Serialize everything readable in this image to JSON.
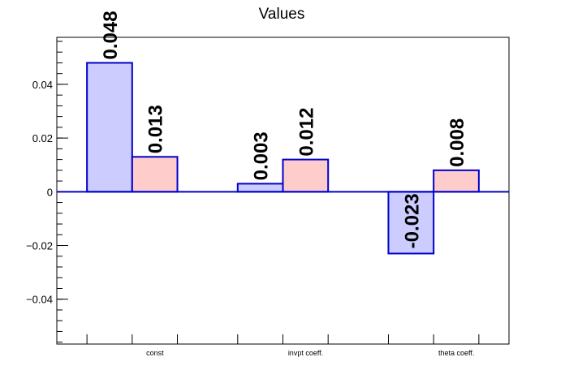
{
  "chart_data": {
    "type": "bar",
    "title": "Values",
    "xlabel": "",
    "ylabel": "",
    "categories": [
      "const",
      "invpt coeff.",
      "theta coeff."
    ],
    "series": [
      {
        "values": [
          0.048,
          0.003,
          -0.023
        ],
        "labels": [
          "0.048",
          "0.003",
          "-0.023"
        ],
        "color": "#ccccff"
      },
      {
        "values": [
          0.013,
          0.012,
          0.008
        ],
        "labels": [
          "0.013",
          "0.012",
          "0.008"
        ],
        "color": "#ffcccc"
      }
    ],
    "ylim": [
      -0.0567,
      0.0575
    ],
    "yticks": [
      -0.04,
      -0.02,
      0,
      0.02,
      0.04
    ],
    "ytick_labels": [
      "−0.04",
      "−0.02",
      "0",
      "0.02",
      "0.04"
    ],
    "bar_edge_color": "#0000cc",
    "axis_color": "#000000",
    "grid": false,
    "legend": "none"
  }
}
